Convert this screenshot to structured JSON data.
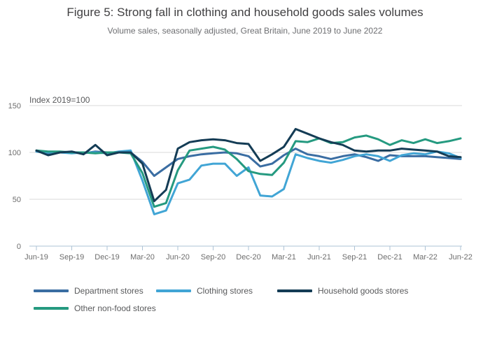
{
  "page": {
    "title": "Figure 5: Strong fall in clothing and household goods sales volumes",
    "subtitle": "Volume sales, seasonally adjusted, Great Britain, June 2019 to June 2022"
  },
  "chart_data": {
    "type": "line",
    "title": "Figure 5: Strong fall in clothing and household goods sales volumes",
    "subtitle": "Volume sales, seasonally adjusted, Great Britain, June 2019 to June 2022",
    "ylabel": "Index 2019=100",
    "xlabel": "",
    "ylim": [
      0,
      150
    ],
    "yticks": [
      0,
      50,
      100,
      150
    ],
    "grid": "horizontal",
    "legend_position": "bottom",
    "x_tick_labels": [
      "Jun-19",
      "Sep-19",
      "Dec-19",
      "Mar-20",
      "Jun-20",
      "Sep-20",
      "Dec-20",
      "Mar-21",
      "Jun-21",
      "Sep-21",
      "Dec-21",
      "Mar-22",
      "Jun-22"
    ],
    "x": [
      "Jun-19",
      "Jul-19",
      "Aug-19",
      "Sep-19",
      "Oct-19",
      "Nov-19",
      "Dec-19",
      "Jan-20",
      "Feb-20",
      "Mar-20",
      "Apr-20",
      "May-20",
      "Jun-20",
      "Jul-20",
      "Aug-20",
      "Sep-20",
      "Oct-20",
      "Nov-20",
      "Dec-20",
      "Jan-21",
      "Feb-21",
      "Mar-21",
      "Apr-21",
      "May-21",
      "Jun-21",
      "Jul-21",
      "Aug-21",
      "Sep-21",
      "Oct-21",
      "Nov-21",
      "Dec-21",
      "Jan-22",
      "Feb-22",
      "Mar-22",
      "Apr-22",
      "May-22",
      "Jun-22"
    ],
    "series": [
      {
        "name": "Department stores",
        "color": "#3a6da2",
        "values": [
          101,
          99,
          100,
          100,
          99,
          101,
          100,
          100,
          100,
          90,
          75,
          84,
          93,
          96,
          98,
          99,
          100,
          99,
          96,
          85,
          88,
          97,
          104,
          98,
          96,
          93,
          96,
          98,
          95,
          91,
          97,
          96,
          96,
          96,
          95,
          94,
          93
        ]
      },
      {
        "name": "Clothing stores",
        "color": "#41a5d5",
        "values": [
          101,
          100,
          100,
          99,
          100,
          100,
          99,
          101,
          102,
          70,
          34,
          38,
          67,
          71,
          86,
          88,
          88,
          75,
          84,
          54,
          53,
          61,
          98,
          94,
          91,
          89,
          92,
          96,
          98,
          96,
          91,
          97,
          99,
          98,
          101,
          99,
          94
        ]
      },
      {
        "name": "Other non-food stores",
        "color": "#259a80",
        "values": [
          102,
          101,
          101,
          100,
          100,
          99,
          100,
          100,
          99,
          78,
          42,
          46,
          81,
          102,
          104,
          106,
          103,
          93,
          80,
          77,
          76,
          89,
          112,
          111,
          115,
          110,
          111,
          116,
          118,
          114,
          108,
          113,
          110,
          114,
          110,
          112,
          115
        ]
      },
      {
        "name": "Household goods stores",
        "color": "#143c55",
        "values": [
          102,
          97,
          100,
          101,
          98,
          108,
          97,
          100,
          100,
          88,
          48,
          60,
          104,
          111,
          113,
          114,
          113,
          110,
          109,
          91,
          98,
          106,
          125,
          120,
          115,
          111,
          108,
          102,
          101,
          102,
          102,
          104,
          103,
          102,
          101,
          96,
          95
        ]
      }
    ],
    "legend_order": [
      "Department stores",
      "Clothing stores",
      "Household goods stores",
      "Other non-food stores"
    ]
  },
  "colors": {
    "gridline": "#d9d9d9",
    "axis": "#aec3d5",
    "tick_text": "#6d6d6d",
    "axis_label_text": "#58595b"
  }
}
